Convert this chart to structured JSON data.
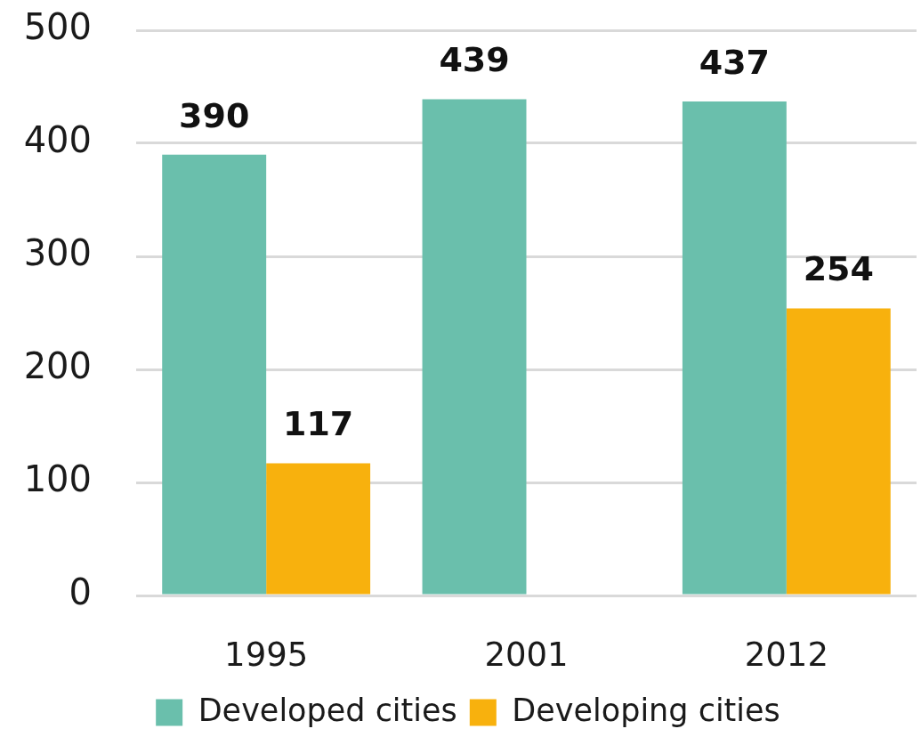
{
  "chart_data": {
    "type": "bar",
    "categories": [
      "1995",
      "2001",
      "2012"
    ],
    "series": [
      {
        "name": "Developed cities",
        "color": "#6abfac",
        "values": [
          390,
          439,
          437
        ]
      },
      {
        "name": "Developing cities",
        "color": "#f8b10d",
        "values": [
          117,
          null,
          254
        ]
      }
    ],
    "ylim": [
      0,
      500
    ],
    "yticks": [
      0,
      100,
      200,
      300,
      400,
      500
    ],
    "grid": "y",
    "legend": "bottom",
    "data_labels": true
  }
}
